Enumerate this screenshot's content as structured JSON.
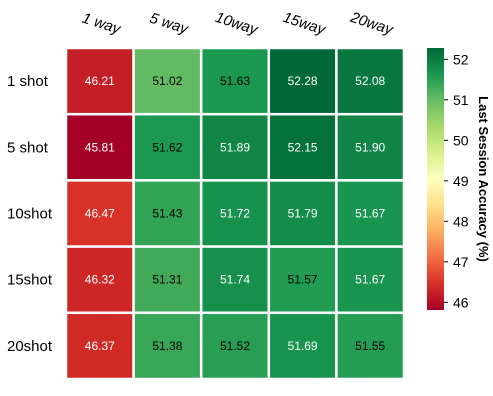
{
  "chart_data": {
    "type": "heatmap",
    "x_categories": [
      "1 way",
      "5 way",
      "10way",
      "15way",
      "20way"
    ],
    "y_categories": [
      "1 shot",
      "5 shot",
      "10shot",
      "15shot",
      "20shot"
    ],
    "values": [
      [
        46.21,
        51.02,
        51.63,
        52.28,
        52.08
      ],
      [
        45.81,
        51.62,
        51.89,
        52.15,
        51.9
      ],
      [
        46.47,
        51.43,
        51.72,
        51.79,
        51.67
      ],
      [
        46.32,
        51.31,
        51.74,
        51.57,
        51.67
      ],
      [
        46.37,
        51.38,
        51.52,
        51.69,
        51.55
      ]
    ],
    "value_labels": [
      [
        "46.21",
        "51.02",
        "51.63",
        "52.28",
        "52.08"
      ],
      [
        "45.81",
        "51.62",
        "51.89",
        "52.15",
        "51.90"
      ],
      [
        "46.47",
        "51.43",
        "51.72",
        "51.79",
        "51.67"
      ],
      [
        "46.32",
        "51.31",
        "51.74",
        "51.57",
        "51.67"
      ],
      [
        "46.37",
        "51.38",
        "51.52",
        "51.69",
        "51.55"
      ]
    ],
    "colorbar": {
      "label": "Last Session Accuracy (%)",
      "ticks": [
        "46",
        "47",
        "48",
        "49",
        "50",
        "51",
        "52"
      ],
      "range": [
        45.81,
        52.28
      ],
      "colormap": "RdYlGn",
      "low_color": "#a50026",
      "mid_color": "#fefebe",
      "high_color": "#006837"
    }
  }
}
